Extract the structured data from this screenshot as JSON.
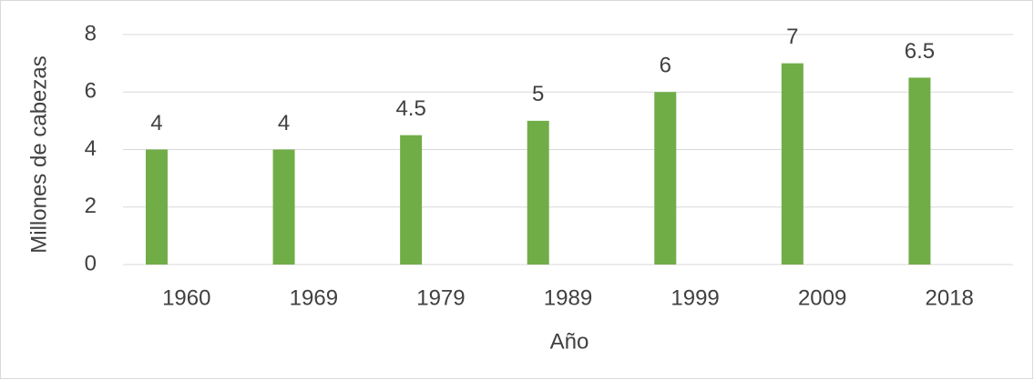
{
  "chart_data": {
    "type": "bar",
    "categories": [
      "1960",
      "1969",
      "1979",
      "1989",
      "1999",
      "2009",
      "2018"
    ],
    "values": [
      4,
      4,
      4.5,
      5,
      6,
      7,
      6.5
    ],
    "color": "#70ad47",
    "x_label": "Año",
    "y_label": "Millones de cabezas",
    "ylim": [
      0,
      8
    ],
    "yticks": [
      0,
      2,
      4,
      6,
      8
    ],
    "grid": true
  }
}
